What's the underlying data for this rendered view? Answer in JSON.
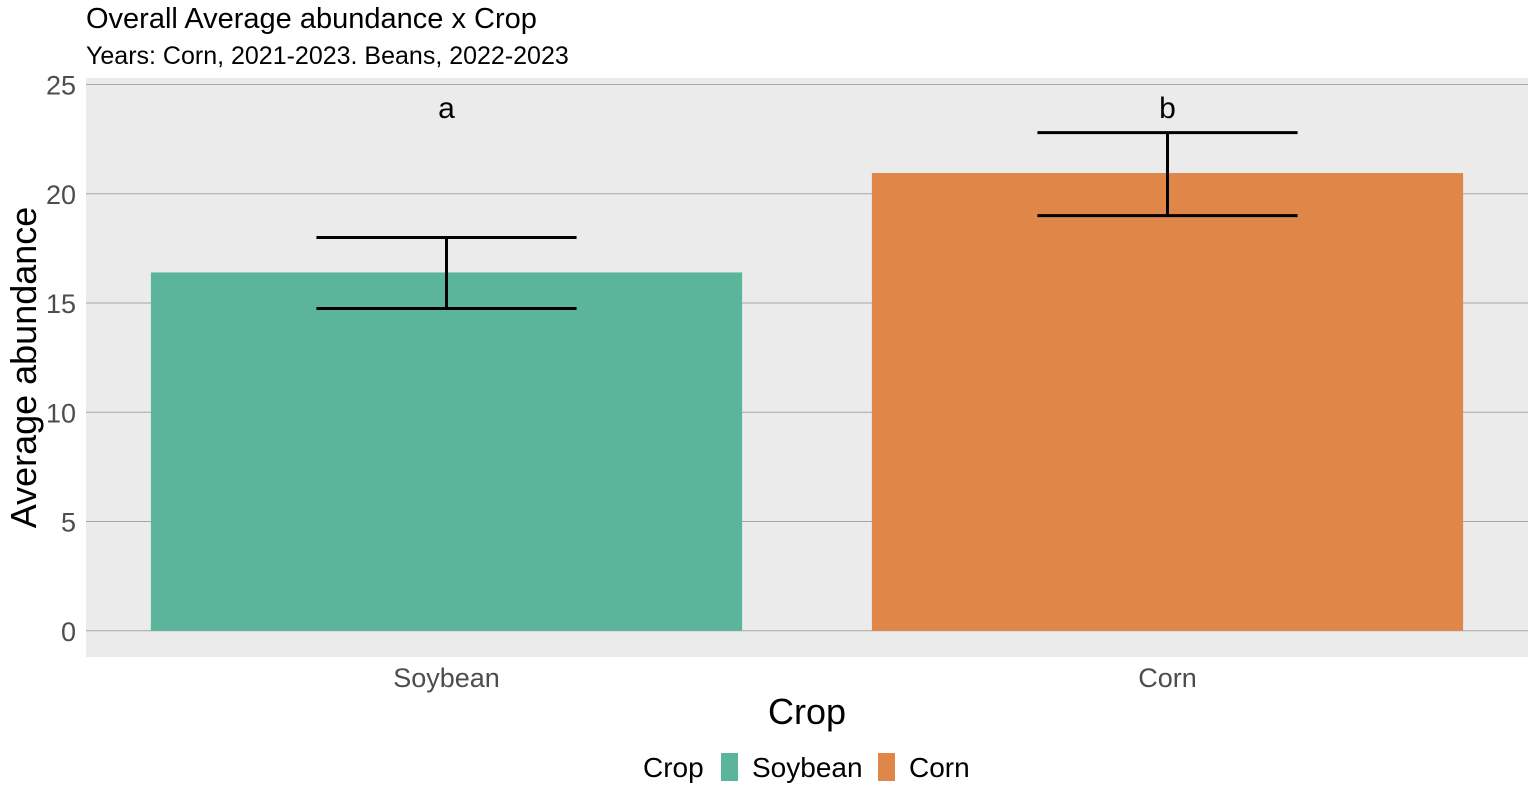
{
  "chart_data": {
    "type": "bar",
    "title": "Overall Average abundance x Crop",
    "subtitle": "Years: Corn, 2021-2023. Beans, 2022-2023",
    "xlabel": "Crop",
    "ylabel": "Average abundance",
    "categories": [
      "Soybean",
      "Corn"
    ],
    "values": [
      16.4,
      20.95
    ],
    "error_low": [
      14.75,
      19.0
    ],
    "error_high": [
      18.0,
      22.8
    ],
    "significance_labels": [
      "a",
      "b"
    ],
    "colors": [
      "#5bb59a",
      "#de8748"
    ],
    "ylim": [
      -1.2,
      25.3
    ],
    "y_ticks": [
      0,
      5,
      10,
      15,
      20,
      25
    ],
    "grid": true,
    "panel_background": "#ebebeb",
    "legend": {
      "position": "bottom",
      "title": "Crop",
      "entries": [
        "Soybean",
        "Corn"
      ]
    }
  }
}
